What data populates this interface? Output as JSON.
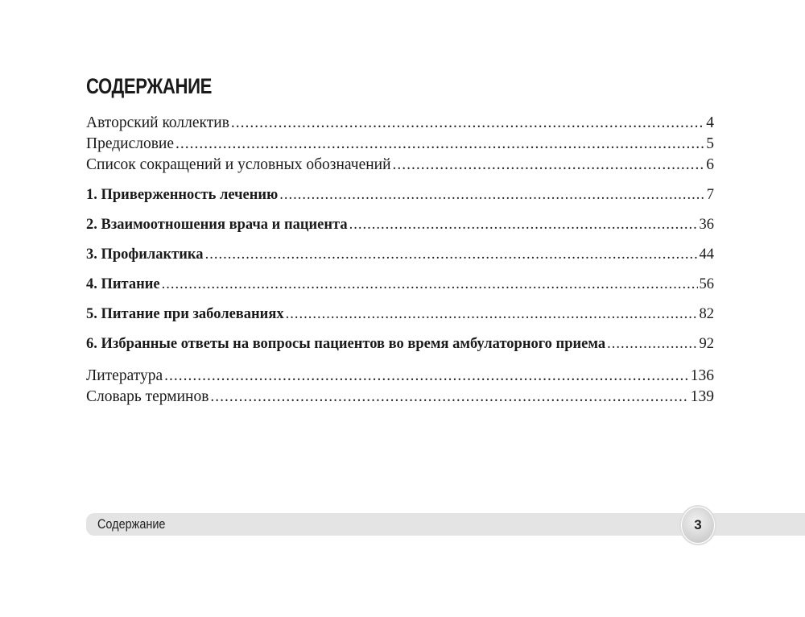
{
  "title": "СОДЕРЖАНИЕ",
  "entries": [
    {
      "label": "Авторский коллектив",
      "page": "4"
    },
    {
      "label": "Предисловие",
      "page": "5"
    },
    {
      "label": "Список сокращений и условных обозначений",
      "page": "6"
    },
    {
      "label": "1. Приверженность лечению",
      "page": "7"
    },
    {
      "label": "2. Взаимоотношения врача и пациента",
      "page": "36"
    },
    {
      "label": "3. Профилактика",
      "page": "44"
    },
    {
      "label": "4. Питание",
      "page": "56"
    },
    {
      "label": "5. Питание при заболеваниях",
      "page": "82"
    },
    {
      "label": "6. Избранные ответы на вопросы пациентов во время амбулаторного приема",
      "page": "92"
    },
    {
      "label": "Литература",
      "page": "136"
    },
    {
      "label": "Словарь терминов",
      "page": "139"
    }
  ],
  "footer": {
    "section": "Содержание",
    "page_number": "3"
  }
}
